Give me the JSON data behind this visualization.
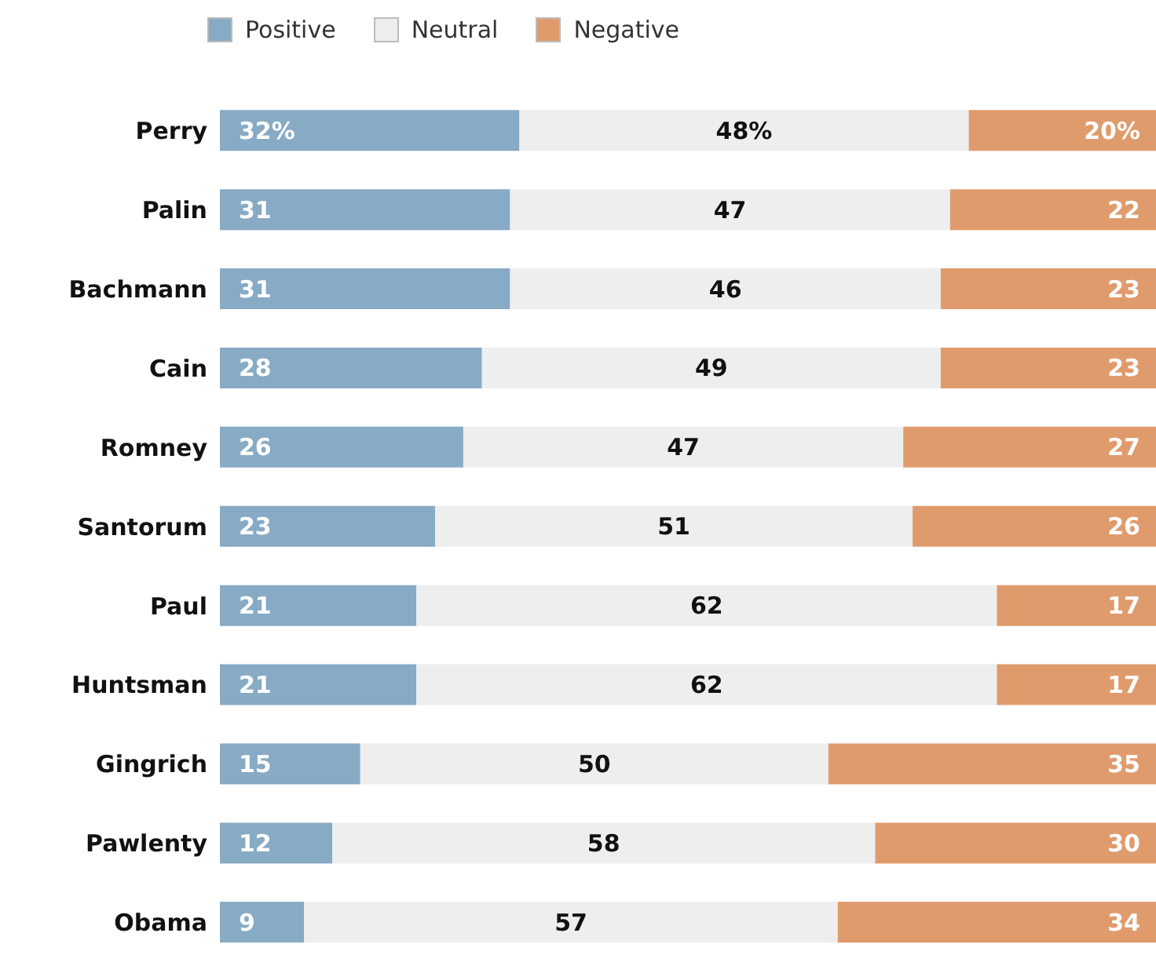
{
  "chart_data": {
    "type": "bar",
    "orientation": "horizontal",
    "stacked": true,
    "legend": "top left",
    "categories": [
      "Perry",
      "Palin",
      "Bachmann",
      "Cain",
      "Romney",
      "Santorum",
      "Paul",
      "Huntsman",
      "Gingrich",
      "Pawlenty",
      "Obama"
    ],
    "series": [
      {
        "name": "Positive",
        "color": "#87aac5",
        "values": [
          32,
          31,
          31,
          28,
          26,
          23,
          21,
          21,
          15,
          12,
          9
        ],
        "value_labels": [
          "32%",
          "31",
          "31",
          "28",
          "26",
          "23",
          "21",
          "21",
          "15",
          "12",
          "9"
        ]
      },
      {
        "name": "Neutral",
        "color": "#eeeeee",
        "values": [
          48,
          47,
          46,
          49,
          47,
          51,
          62,
          62,
          50,
          58,
          57
        ],
        "value_labels": [
          "48%",
          "47",
          "46",
          "49",
          "47",
          "51",
          "62",
          "62",
          "50",
          "58",
          "57"
        ]
      },
      {
        "name": "Negative",
        "color": "#e09b6c",
        "values": [
          20,
          22,
          23,
          23,
          27,
          26,
          17,
          17,
          35,
          30,
          34
        ],
        "value_labels": [
          "20%",
          "22",
          "23",
          "23",
          "27",
          "26",
          "17",
          "17",
          "35",
          "30",
          "34"
        ]
      }
    ]
  }
}
